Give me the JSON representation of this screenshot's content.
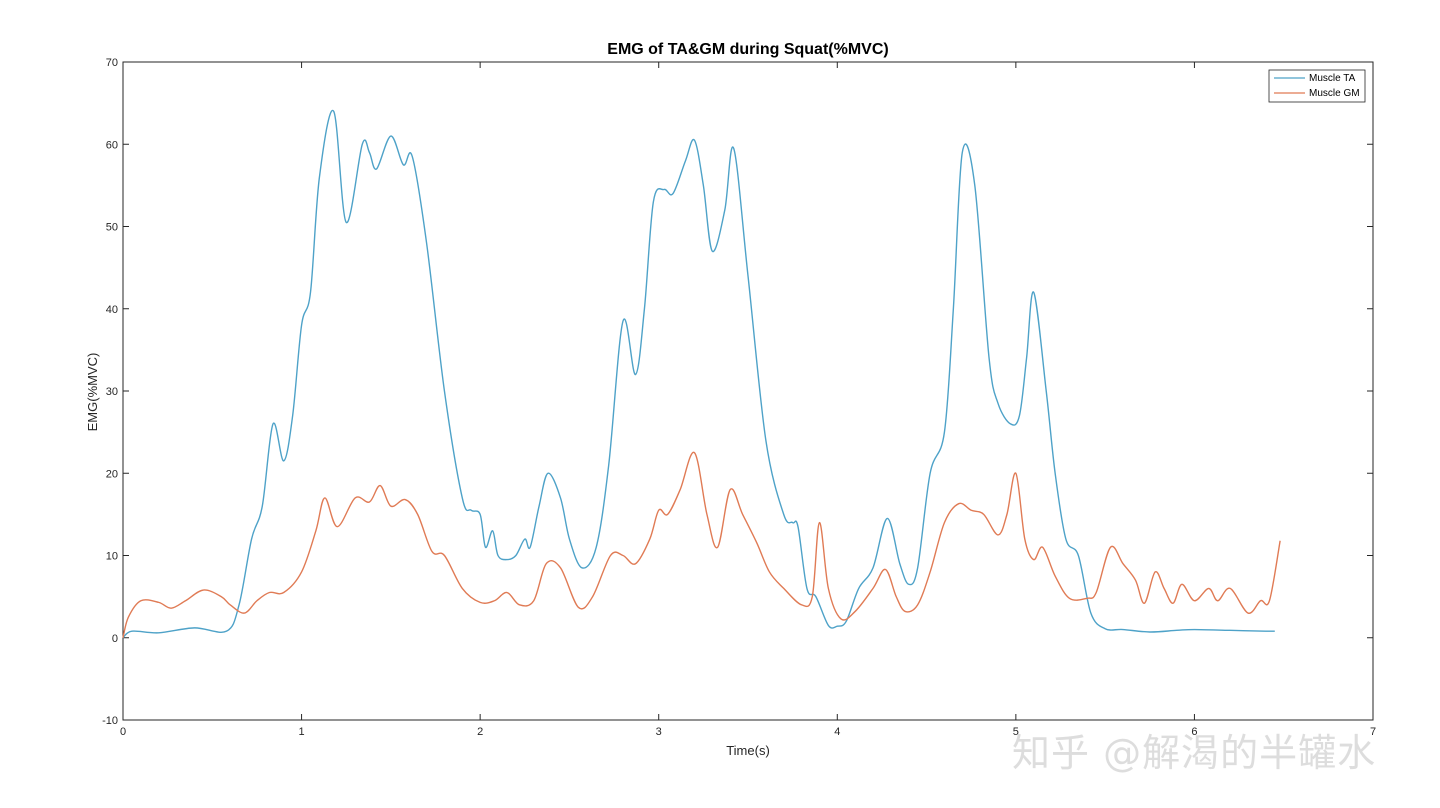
{
  "chart_data": {
    "type": "line",
    "title": "EMG of TA&GM during Squat(%MVC)",
    "xlabel": "Time(s)",
    "ylabel": "EMG(%MVC)",
    "xlim": [
      0,
      7
    ],
    "ylim": [
      -10,
      70
    ],
    "xticks": [
      "0",
      "1",
      "2",
      "3",
      "4",
      "5",
      "6",
      "7"
    ],
    "yticks": [
      "-10",
      "0",
      "10",
      "20",
      "30",
      "40",
      "50",
      "60",
      "70"
    ],
    "grid": false,
    "legend_position": "top-right",
    "series": [
      {
        "name": "Muscle TA",
        "color": "#4ea2c8",
        "points": [
          [
            0,
            0
          ],
          [
            0.05,
            0.8
          ],
          [
            0.2,
            0.6
          ],
          [
            0.4,
            1.2
          ],
          [
            0.58,
            0.8
          ],
          [
            0.65,
            4
          ],
          [
            0.72,
            12
          ],
          [
            0.78,
            16
          ],
          [
            0.84,
            26
          ],
          [
            0.9,
            21.5
          ],
          [
            0.95,
            27
          ],
          [
            1.0,
            38
          ],
          [
            1.05,
            42
          ],
          [
            1.1,
            56
          ],
          [
            1.18,
            64
          ],
          [
            1.25,
            50.5
          ],
          [
            1.34,
            60
          ],
          [
            1.38,
            59
          ],
          [
            1.42,
            57
          ],
          [
            1.5,
            61
          ],
          [
            1.57,
            57.5
          ],
          [
            1.62,
            58.5
          ],
          [
            1.7,
            48
          ],
          [
            1.8,
            30
          ],
          [
            1.9,
            17
          ],
          [
            1.95,
            15.5
          ],
          [
            2.0,
            15
          ],
          [
            2.03,
            11
          ],
          [
            2.07,
            13
          ],
          [
            2.1,
            10
          ],
          [
            2.15,
            9.5
          ],
          [
            2.2,
            10
          ],
          [
            2.25,
            12
          ],
          [
            2.28,
            11
          ],
          [
            2.33,
            16
          ],
          [
            2.38,
            20
          ],
          [
            2.45,
            17
          ],
          [
            2.5,
            12
          ],
          [
            2.57,
            8.5
          ],
          [
            2.65,
            11
          ],
          [
            2.72,
            21
          ],
          [
            2.8,
            38.5
          ],
          [
            2.87,
            32
          ],
          [
            2.92,
            40
          ],
          [
            2.97,
            53
          ],
          [
            3.03,
            54.5
          ],
          [
            3.08,
            54
          ],
          [
            3.15,
            58
          ],
          [
            3.2,
            60.5
          ],
          [
            3.25,
            55
          ],
          [
            3.3,
            47
          ],
          [
            3.37,
            52
          ],
          [
            3.42,
            59.5
          ],
          [
            3.5,
            44
          ],
          [
            3.6,
            24
          ],
          [
            3.7,
            15
          ],
          [
            3.75,
            14
          ],
          [
            3.78,
            13.5
          ],
          [
            3.83,
            6
          ],
          [
            3.88,
            5
          ],
          [
            3.95,
            1.5
          ],
          [
            4.0,
            1.4
          ],
          [
            4.05,
            2
          ],
          [
            4.12,
            6
          ],
          [
            4.2,
            8.5
          ],
          [
            4.28,
            14.5
          ],
          [
            4.35,
            9
          ],
          [
            4.4,
            6.5
          ],
          [
            4.45,
            8.5
          ],
          [
            4.52,
            20
          ],
          [
            4.6,
            25
          ],
          [
            4.65,
            40
          ],
          [
            4.7,
            59
          ],
          [
            4.77,
            55
          ],
          [
            4.85,
            34
          ],
          [
            4.9,
            28.5
          ],
          [
            4.97,
            26
          ],
          [
            5.02,
            27
          ],
          [
            5.06,
            34
          ],
          [
            5.1,
            42
          ],
          [
            5.17,
            30
          ],
          [
            5.22,
            20
          ],
          [
            5.28,
            12
          ],
          [
            5.35,
            10
          ],
          [
            5.42,
            3
          ],
          [
            5.5,
            1.1
          ],
          [
            5.6,
            1
          ],
          [
            5.75,
            0.7
          ],
          [
            5.9,
            0.9
          ],
          [
            6.0,
            1
          ],
          [
            6.2,
            0.9
          ],
          [
            6.4,
            0.8
          ],
          [
            6.45,
            0.8
          ]
        ]
      },
      {
        "name": "Muscle GM",
        "color": "#e07b55",
        "points": [
          [
            0,
            0
          ],
          [
            0.03,
            2.5
          ],
          [
            0.1,
            4.5
          ],
          [
            0.2,
            4.3
          ],
          [
            0.27,
            3.6
          ],
          [
            0.35,
            4.5
          ],
          [
            0.45,
            5.8
          ],
          [
            0.55,
            5
          ],
          [
            0.6,
            4
          ],
          [
            0.68,
            3
          ],
          [
            0.75,
            4.5
          ],
          [
            0.82,
            5.5
          ],
          [
            0.9,
            5.5
          ],
          [
            1.0,
            8
          ],
          [
            1.08,
            13
          ],
          [
            1.13,
            17
          ],
          [
            1.2,
            13.5
          ],
          [
            1.3,
            17
          ],
          [
            1.38,
            16.5
          ],
          [
            1.44,
            18.5
          ],
          [
            1.5,
            16
          ],
          [
            1.58,
            16.8
          ],
          [
            1.65,
            15
          ],
          [
            1.73,
            10.5
          ],
          [
            1.8,
            10
          ],
          [
            1.9,
            6
          ],
          [
            2.0,
            4.3
          ],
          [
            2.08,
            4.5
          ],
          [
            2.15,
            5.5
          ],
          [
            2.22,
            4
          ],
          [
            2.3,
            4.5
          ],
          [
            2.37,
            9
          ],
          [
            2.45,
            8.5
          ],
          [
            2.55,
            3.7
          ],
          [
            2.63,
            5
          ],
          [
            2.73,
            10
          ],
          [
            2.8,
            10
          ],
          [
            2.87,
            9
          ],
          [
            2.95,
            12
          ],
          [
            3.0,
            15.5
          ],
          [
            3.05,
            15
          ],
          [
            3.12,
            18
          ],
          [
            3.2,
            22.5
          ],
          [
            3.27,
            15
          ],
          [
            3.33,
            11
          ],
          [
            3.4,
            18
          ],
          [
            3.47,
            15
          ],
          [
            3.55,
            11.5
          ],
          [
            3.62,
            8
          ],
          [
            3.7,
            6
          ],
          [
            3.8,
            4
          ],
          [
            3.86,
            5
          ],
          [
            3.9,
            14
          ],
          [
            3.95,
            6
          ],
          [
            4.02,
            2.3
          ],
          [
            4.1,
            3.2
          ],
          [
            4.2,
            6
          ],
          [
            4.27,
            8.3
          ],
          [
            4.33,
            5
          ],
          [
            4.38,
            3.2
          ],
          [
            4.45,
            4
          ],
          [
            4.52,
            8
          ],
          [
            4.6,
            14
          ],
          [
            4.68,
            16.3
          ],
          [
            4.75,
            15.5
          ],
          [
            4.82,
            15
          ],
          [
            4.9,
            12.5
          ],
          [
            4.95,
            15
          ],
          [
            5.0,
            20
          ],
          [
            5.05,
            12
          ],
          [
            5.1,
            9.5
          ],
          [
            5.15,
            11
          ],
          [
            5.22,
            7.5
          ],
          [
            5.3,
            4.8
          ],
          [
            5.4,
            4.8
          ],
          [
            5.45,
            5.5
          ],
          [
            5.53,
            11
          ],
          [
            5.6,
            9
          ],
          [
            5.67,
            7
          ],
          [
            5.72,
            4.2
          ],
          [
            5.78,
            8
          ],
          [
            5.83,
            6
          ],
          [
            5.88,
            4.2
          ],
          [
            5.93,
            6.5
          ],
          [
            6.0,
            4.5
          ],
          [
            6.08,
            6
          ],
          [
            6.13,
            4.5
          ],
          [
            6.2,
            6
          ],
          [
            6.3,
            3
          ],
          [
            6.37,
            4.5
          ],
          [
            6.42,
            4.5
          ],
          [
            6.48,
            11.8
          ]
        ]
      }
    ]
  },
  "watermark": "知乎 @解渴的半罐水"
}
